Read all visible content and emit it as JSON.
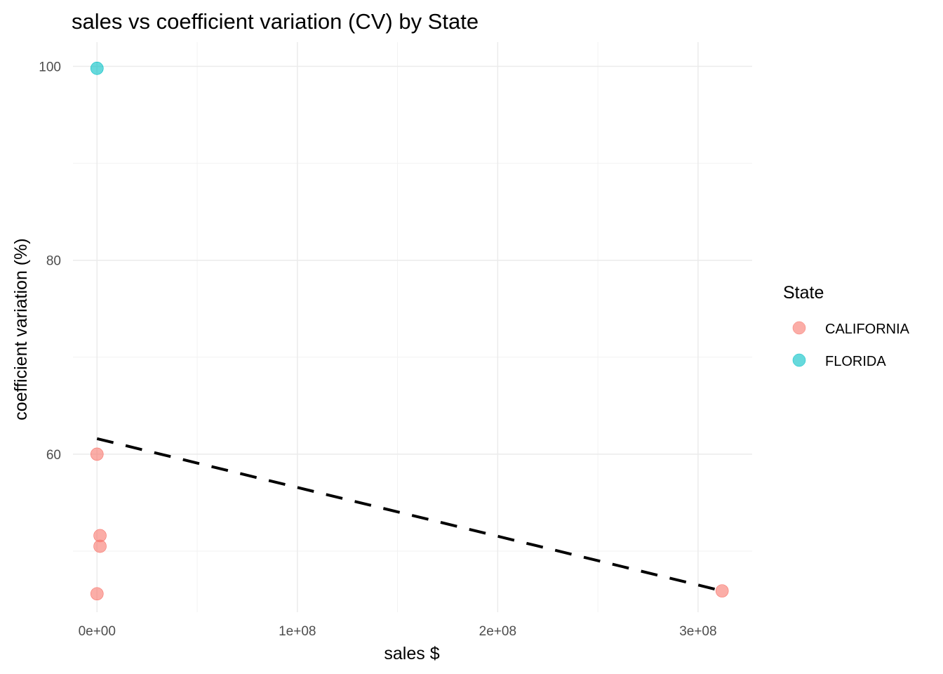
{
  "chart_data": {
    "type": "scatter",
    "title": "sales vs coefficient variation (CV) by State",
    "xlabel": "sales $",
    "ylabel": "coefficient variation (%)",
    "xlim": [
      -12000000,
      327000000
    ],
    "ylim": [
      43.7,
      102.5
    ],
    "x_ticks": [
      {
        "value": 0,
        "label": "0e+00"
      },
      {
        "value": 100000000,
        "label": "1e+08"
      },
      {
        "value": 200000000,
        "label": "2e+08"
      },
      {
        "value": 300000000,
        "label": "3e+08"
      }
    ],
    "x_minor_ticks": [
      50000000,
      150000000,
      250000000
    ],
    "y_ticks": [
      {
        "value": 60,
        "label": "60"
      },
      {
        "value": 80,
        "label": "80"
      },
      {
        "value": 100,
        "label": "100"
      }
    ],
    "y_minor_ticks": [
      50,
      70,
      90
    ],
    "grid": true,
    "legend": {
      "title": "State",
      "position": "right"
    },
    "series": [
      {
        "name": "CALIFORNIA",
        "color": "#F8766D",
        "points": [
          {
            "x": 0,
            "y": 60.0
          },
          {
            "x": 1500000,
            "y": 51.6
          },
          {
            "x": 1500000,
            "y": 50.5
          },
          {
            "x": 0,
            "y": 45.6
          },
          {
            "x": 312000000,
            "y": 45.9
          }
        ]
      },
      {
        "name": "FLORIDA",
        "color": "#00BFC4",
        "points": [
          {
            "x": 0,
            "y": 99.8
          }
        ]
      }
    ],
    "trend_line": {
      "style": "dashed",
      "color": "#000000",
      "x": [
        0,
        312000000
      ],
      "y": [
        61.6,
        45.9
      ]
    }
  }
}
